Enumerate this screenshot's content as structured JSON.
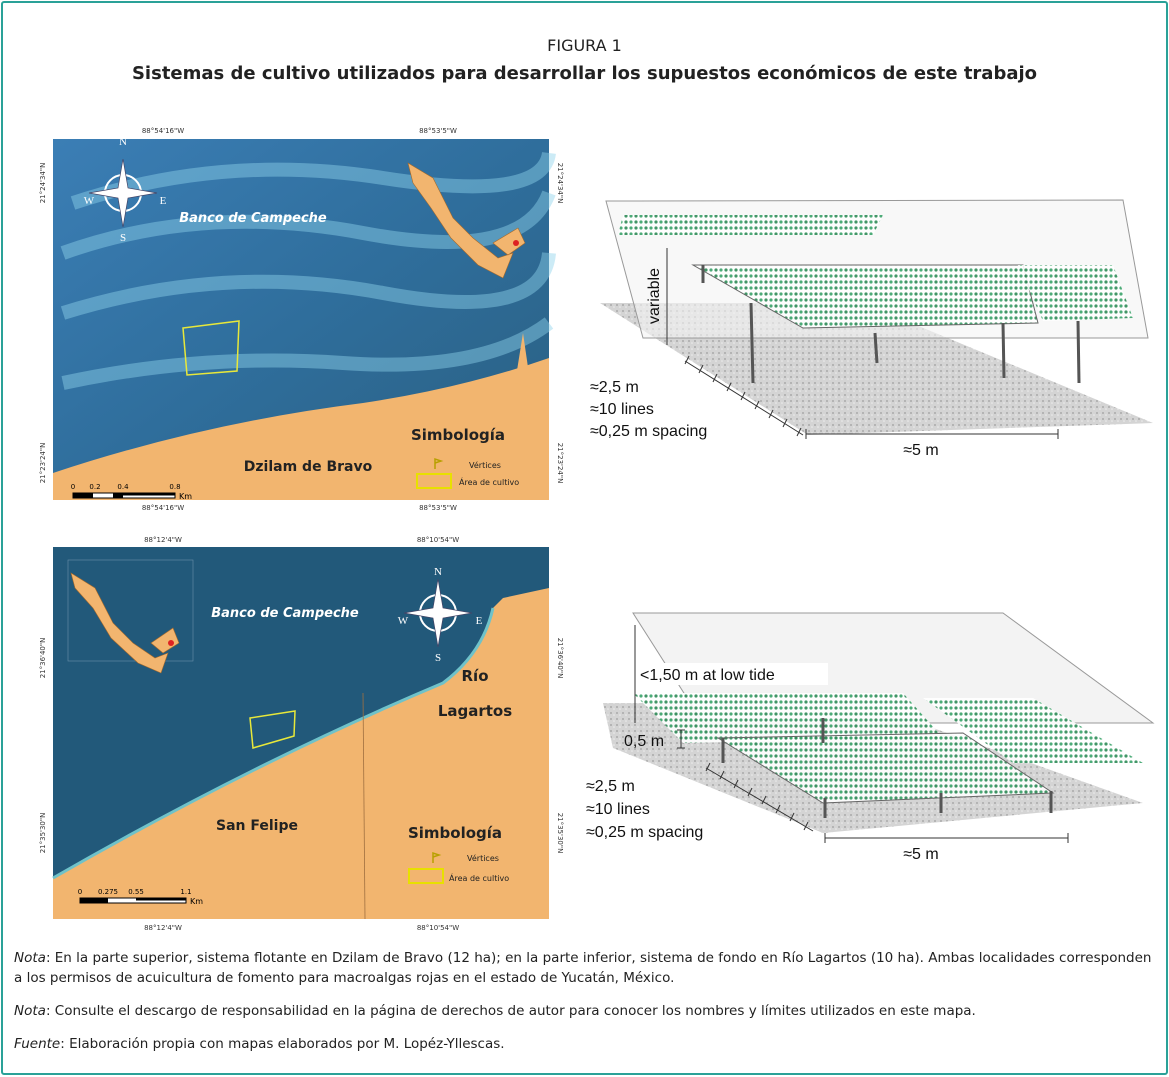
{
  "header": {
    "label": "FIGURA 1",
    "title": "Sistemas de cultivo utilizados para desarrollar los supuestos económicos de este trabajo"
  },
  "maps": [
    {
      "top_coords": [
        "88°54'16\"W",
        "88°53'5\"W"
      ],
      "bottom_coords": [
        "88°54'16\"W",
        "88°53'5\"W"
      ],
      "left_coords": [
        "21°24'34\"N",
        "21°23'24\"N"
      ],
      "right_coords": [
        "21°24'34\"N",
        "21°23'24\"N"
      ],
      "sea_label": "Banco de Campeche",
      "places": [
        "Dzilam de Bravo"
      ],
      "compass": [
        "N",
        "S",
        "E",
        "W"
      ],
      "legend": {
        "title": "Simbología",
        "items": [
          "Vértices",
          "Área de cultivo"
        ]
      },
      "scale": {
        "ticks": [
          "0",
          "0.2",
          "0.4",
          "0.8"
        ],
        "unit": "Km"
      }
    },
    {
      "top_coords": [
        "88°12'4\"W",
        "88°10'54\"W"
      ],
      "bottom_coords": [
        "88°12'4\"W",
        "88°10'54\"W"
      ],
      "left_coords": [
        "21°36'40\"N",
        "21°35'30\"N"
      ],
      "right_coords": [
        "21°36'40\"N",
        "21°35'30\"N"
      ],
      "sea_label": "Banco de Campeche",
      "places": [
        "Río",
        "Lagartos",
        "San Felipe"
      ],
      "compass": [
        "N",
        "S",
        "E",
        "W"
      ],
      "legend": {
        "title": "Simbología",
        "items": [
          "Vértices",
          "Área de cultivo"
        ]
      },
      "scale": {
        "ticks": [
          "0",
          "0.275",
          "0.55",
          "1.1"
        ],
        "unit": "Km"
      }
    }
  ],
  "diagrams": [
    {
      "labels": [
        "variable",
        "≈2,5 m",
        "≈10 lines",
        "≈0,25 m spacing",
        "≈5 m"
      ]
    },
    {
      "labels": [
        "<1,50 m at low tide",
        "0,5 m",
        "≈2,5 m",
        "≈10 lines",
        "≈0,25 m spacing",
        "≈5 m"
      ]
    }
  ],
  "notes": [
    {
      "label": "Nota",
      "text": ": En la parte superior, sistema flotante en Dzilam de Bravo (12 ha); en la parte inferior, sistema de fondo en Río Lagartos (10 ha). Ambas localidades corresponden a los permisos de acuicultura de fomento para macroalgas rojas en el estado de Yucatán, México."
    },
    {
      "label": "Nota",
      "text": ": Consulte el descargo de responsabilidad en la página de derechos de autor para conocer los nombres y límites utilizados en este mapa."
    },
    {
      "label": "Fuente",
      "text": ": Elaboración propia con mapas elaborados por M. Lopéz-Yllescas."
    }
  ]
}
